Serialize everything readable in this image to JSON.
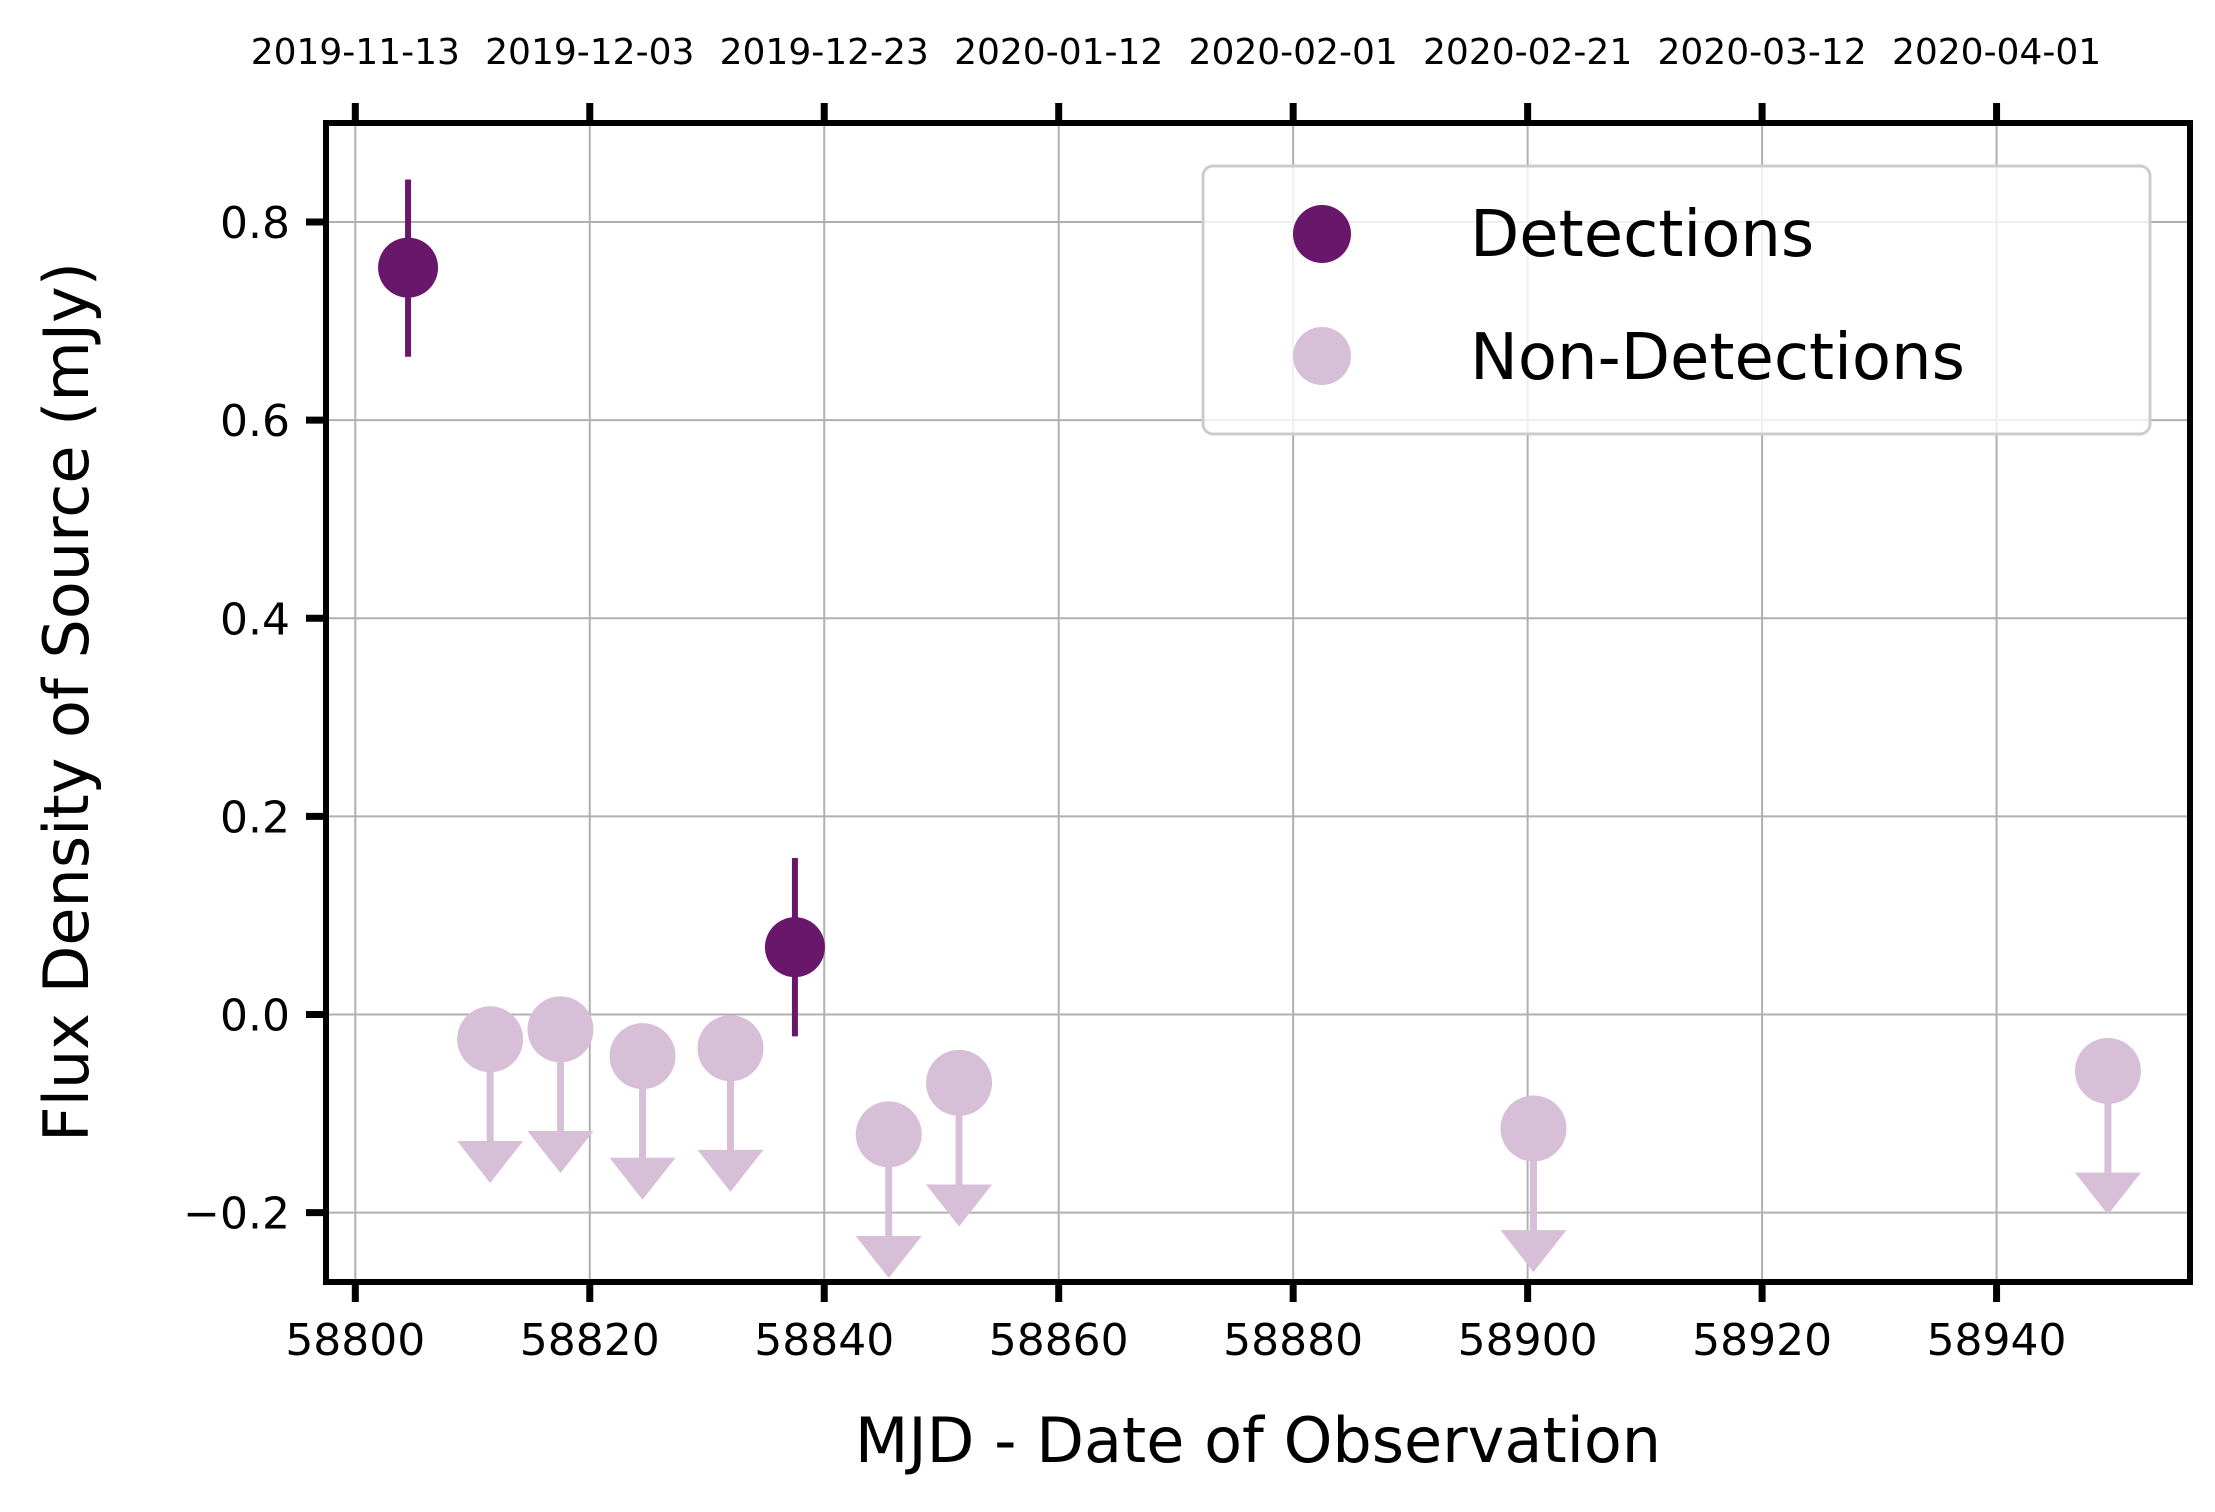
{
  "chart_data": {
    "type": "scatter",
    "xlabel": "MJD - Date of Observation",
    "ylabel": "Flux Density of Source (mJy)",
    "xlim": [
      58797.5,
      58956.5
    ],
    "ylim": [
      -0.27,
      0.9
    ],
    "grid": true,
    "legend_position": "top-right",
    "x_ticks": [
      {
        "value": 58800,
        "label": "58800"
      },
      {
        "value": 58820,
        "label": "58820"
      },
      {
        "value": 58840,
        "label": "58840"
      },
      {
        "value": 58860,
        "label": "58860"
      },
      {
        "value": 58880,
        "label": "58880"
      },
      {
        "value": 58900,
        "label": "58900"
      },
      {
        "value": 58920,
        "label": "58920"
      },
      {
        "value": 58940,
        "label": "58940"
      }
    ],
    "y_ticks": [
      {
        "value": 0.8,
        "label": "0.8"
      },
      {
        "value": 0.6,
        "label": "0.6"
      },
      {
        "value": 0.4,
        "label": "0.4"
      },
      {
        "value": 0.2,
        "label": "0.2"
      },
      {
        "value": 0.0,
        "label": "0.0"
      },
      {
        "value": -0.2,
        "label": "−0.2"
      }
    ],
    "top_axis_ticks": [
      {
        "value": 58800,
        "label": "2019-11-13"
      },
      {
        "value": 58820,
        "label": "2019-12-03"
      },
      {
        "value": 58840,
        "label": "2019-12-23"
      },
      {
        "value": 58860,
        "label": "2020-01-12"
      },
      {
        "value": 58880,
        "label": "2020-02-01"
      },
      {
        "value": 58900,
        "label": "2020-02-21"
      },
      {
        "value": 58920,
        "label": "2020-03-12"
      },
      {
        "value": 58940,
        "label": "2020-04-01"
      }
    ],
    "series": [
      {
        "name": "Detections",
        "color": "#68176b",
        "marker": "circle",
        "points": [
          {
            "x": 58804.5,
            "y": 0.754,
            "yerr_low": 0.664,
            "yerr_high": 0.843
          },
          {
            "x": 58837.5,
            "y": 0.068,
            "yerr_low": -0.022,
            "yerr_high": 0.158
          }
        ]
      },
      {
        "name": "Non-Detections",
        "color": "#d8bfd8",
        "marker": "circle-upper-limit",
        "points": [
          {
            "x": 58811.5,
            "y": -0.025,
            "arrow_to": -0.17
          },
          {
            "x": 58817.5,
            "y": -0.015,
            "arrow_to": -0.16
          },
          {
            "x": 58824.5,
            "y": -0.042,
            "arrow_to": -0.187
          },
          {
            "x": 58832.0,
            "y": -0.034,
            "arrow_to": -0.179
          },
          {
            "x": 58845.5,
            "y": -0.121,
            "arrow_to": -0.266
          },
          {
            "x": 58851.5,
            "y": -0.069,
            "arrow_to": -0.214
          },
          {
            "x": 58900.5,
            "y": -0.115,
            "arrow_to": -0.26
          },
          {
            "x": 58949.5,
            "y": -0.057,
            "arrow_to": -0.202
          }
        ]
      }
    ]
  }
}
